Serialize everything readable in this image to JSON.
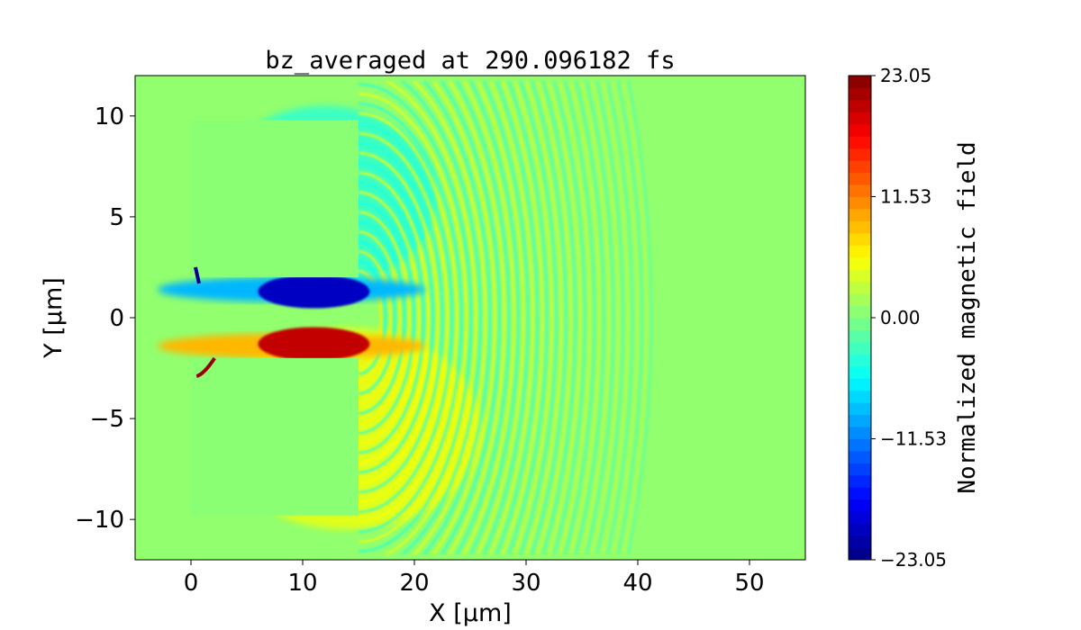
{
  "chart_data": {
    "type": "heatmap",
    "title": "bz_averaged at 290.096182 fs",
    "xlabel": "X [μm]",
    "ylabel": "Y [μm]",
    "xlim": [
      -5,
      55
    ],
    "ylim": [
      -12,
      12
    ],
    "xticks": [
      0,
      10,
      20,
      30,
      40,
      50
    ],
    "xtick_labels": [
      "0",
      "10",
      "20",
      "30",
      "40",
      "50"
    ],
    "yticks": [
      -10,
      -5,
      0,
      5,
      10
    ],
    "ytick_labels": [
      "−10",
      "−5",
      "0",
      "5",
      "10"
    ],
    "colormap": "jet",
    "colorbar": {
      "label": "Normalized magnetic field",
      "range": [
        -23.05,
        23.05
      ],
      "ticks": [
        -23.05,
        -11.53,
        0.0,
        11.53,
        23.05
      ],
      "tick_labels": [
        "−23.05",
        "−11.53",
        "0.00",
        "11.53",
        "23.05"
      ],
      "levels": 40
    },
    "features": {
      "targets": [
        {
          "x": [
            0,
            15
          ],
          "y": [
            2,
            9.8
          ],
          "value": 0.5
        },
        {
          "x": [
            0,
            15
          ],
          "y": [
            -9.8,
            -2
          ],
          "value": 0.5
        }
      ],
      "blue_band": {
        "x": [
          5,
          15
        ],
        "y": [
          0.6,
          2
        ],
        "value": -20
      },
      "red_band": {
        "x": [
          5,
          15
        ],
        "y": [
          -2,
          -0.6
        ],
        "value": 20
      },
      "wavefront_center_x": 15,
      "wavefront_max_radius": 26
    }
  }
}
